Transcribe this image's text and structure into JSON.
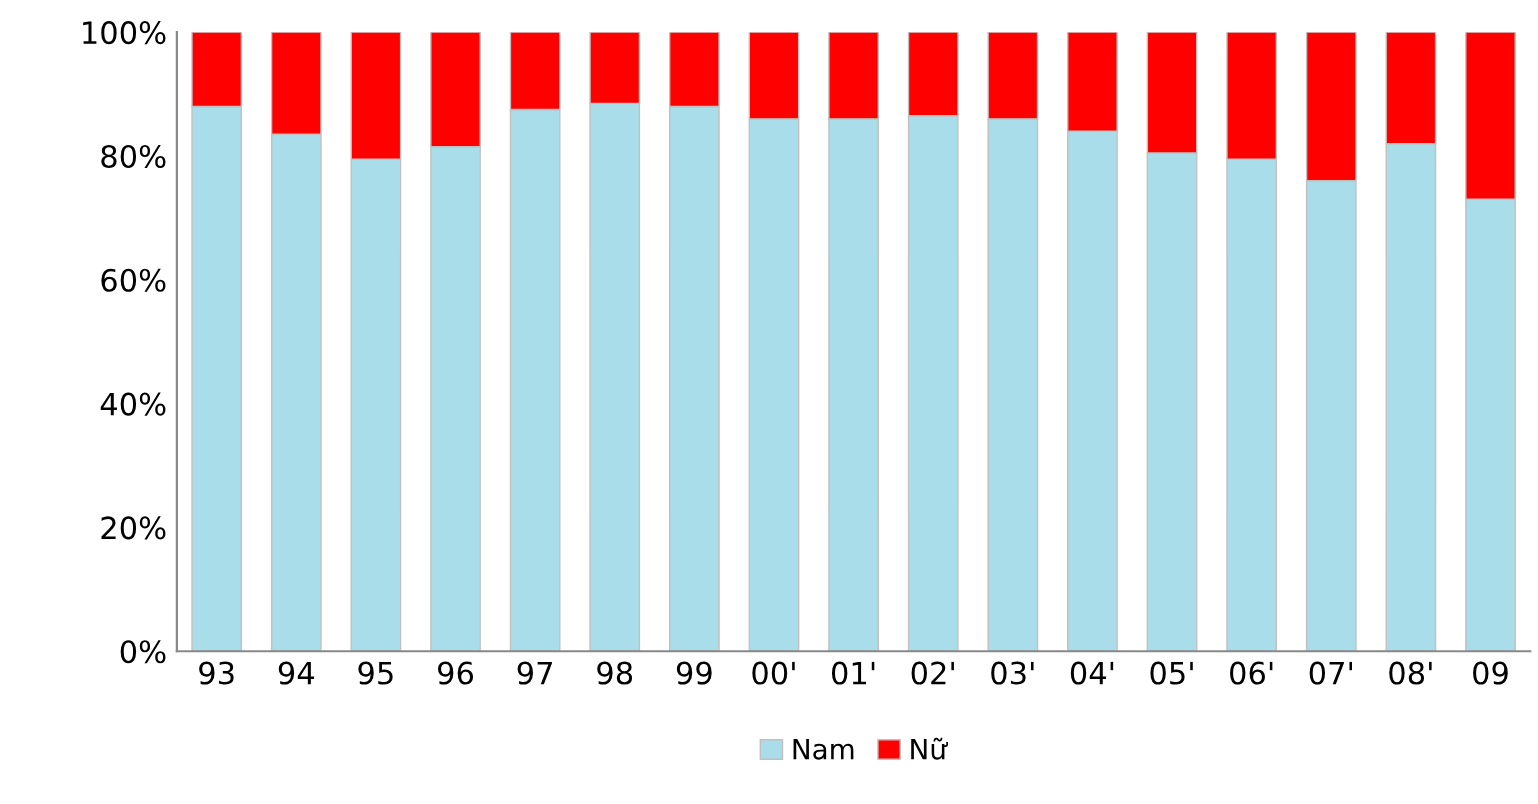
{
  "chart_data": {
    "type": "bar",
    "stacked": true,
    "categories": [
      "93",
      "94",
      "95",
      "96",
      "97",
      "98",
      "99",
      "00'",
      "01'",
      "02'",
      "03'",
      "04'",
      "05'",
      "06'",
      "07'",
      "08'",
      "09"
    ],
    "series": [
      {
        "name": "Nam",
        "color": "#a9dde9",
        "values": [
          88,
          83.5,
          79.5,
          81.5,
          87.5,
          88.5,
          88,
          86,
          86,
          86.5,
          86,
          84,
          80.5,
          79.5,
          76,
          82,
          73
        ]
      },
      {
        "name": "Nữ",
        "color": "#ff0000",
        "values": [
          12,
          16.5,
          20.5,
          18.5,
          12.5,
          11.5,
          12,
          14,
          14,
          13.5,
          14,
          16,
          19.5,
          20.5,
          24,
          18,
          27
        ]
      }
    ],
    "ylim": [
      0,
      100
    ],
    "yticks": [
      {
        "value": 0,
        "label": "0%"
      },
      {
        "value": 20,
        "label": "20%"
      },
      {
        "value": 40,
        "label": "40%"
      },
      {
        "value": 60,
        "label": "60%"
      },
      {
        "value": 80,
        "label": "80%"
      },
      {
        "value": 100,
        "label": "100%"
      }
    ],
    "grid": false,
    "legend": "bottom"
  }
}
